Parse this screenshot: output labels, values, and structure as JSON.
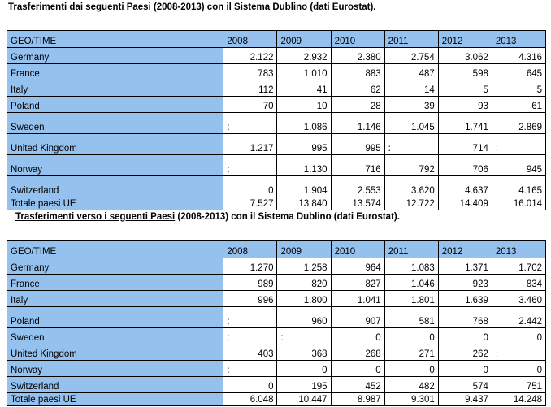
{
  "table1": {
    "title_underlined": "Trasferimenti dai seguenti Paesi",
    "title_rest": " (2008-2013) con il Sistema Dublino  (dati Eurostat).",
    "header": [
      "GEO/TIME",
      "2008",
      "2009",
      "2010",
      "2011",
      "2012",
      "2013"
    ],
    "rows": [
      {
        "label": "Germany",
        "values": [
          "2.122",
          "2.932",
          "2.380",
          "2.754",
          "3.062",
          "4.316"
        ]
      },
      {
        "label": "France",
        "values": [
          "783",
          "1.010",
          "883",
          "487",
          "598",
          "645"
        ]
      },
      {
        "label": "Italy",
        "values": [
          "112",
          "41",
          "62",
          "14",
          "5",
          "5"
        ]
      },
      {
        "label": "Poland",
        "values": [
          "70",
          "10",
          "28",
          "39",
          "93",
          "61"
        ]
      },
      {
        "label": "Sweden",
        "values": [
          ":",
          "1.086",
          "1.146",
          "1.045",
          "1.741",
          "2.869"
        ]
      },
      {
        "label": "United Kingdom",
        "values": [
          "1.217",
          "995",
          "995",
          ":",
          "714",
          ":"
        ]
      },
      {
        "label": "Norway",
        "values": [
          ":",
          "1.130",
          "716",
          "792",
          "706",
          "945"
        ]
      },
      {
        "label": "Switzerland",
        "values": [
          "0",
          "1.904",
          "2.553",
          "3.620",
          "4.637",
          "4.165"
        ]
      },
      {
        "label": "Totale  paesi UE",
        "values": [
          "7.527",
          "13.840",
          "13.574",
          "12.722",
          "14.409",
          "16.014"
        ]
      }
    ]
  },
  "table2": {
    "title_underlined": "Trasferimenti verso i seguenti Paesi",
    "title_rest": " (2008-2013) con il Sistema Dublino  (dati Eurostat).",
    "header": [
      "GEO/TIME",
      "2008",
      "2009",
      "2010",
      "2011",
      "2012",
      "2013"
    ],
    "rows": [
      {
        "label": "Germany",
        "values": [
          "1.270",
          "1.258",
          "964",
          "1.083",
          "1.371",
          "1.702"
        ]
      },
      {
        "label": "France",
        "values": [
          "989",
          "820",
          "827",
          "1.046",
          "923",
          "834"
        ]
      },
      {
        "label": "Italy",
        "values": [
          "996",
          "1.800",
          "1.041",
          "1.801",
          "1.639",
          "3.460"
        ]
      },
      {
        "label": "Poland",
        "values": [
          ":",
          "960",
          "907",
          "581",
          "768",
          "2.442"
        ]
      },
      {
        "label": "Sweden",
        "values": [
          ":",
          ":",
          "0",
          "0",
          "0",
          "0"
        ]
      },
      {
        "label": "United Kingdom",
        "values": [
          "403",
          "368",
          "268",
          "271",
          "262",
          ":"
        ]
      },
      {
        "label": "Norway",
        "values": [
          ":",
          "0",
          "0",
          "0",
          "0",
          "0"
        ]
      },
      {
        "label": "Switzerland",
        "values": [
          "0",
          "195",
          "452",
          "482",
          "574",
          "751"
        ]
      },
      {
        "label": "Totale paesi UE",
        "values": [
          "6.048",
          "10.447",
          "8.987",
          "9.301",
          "9.437",
          "14.248"
        ]
      }
    ]
  }
}
